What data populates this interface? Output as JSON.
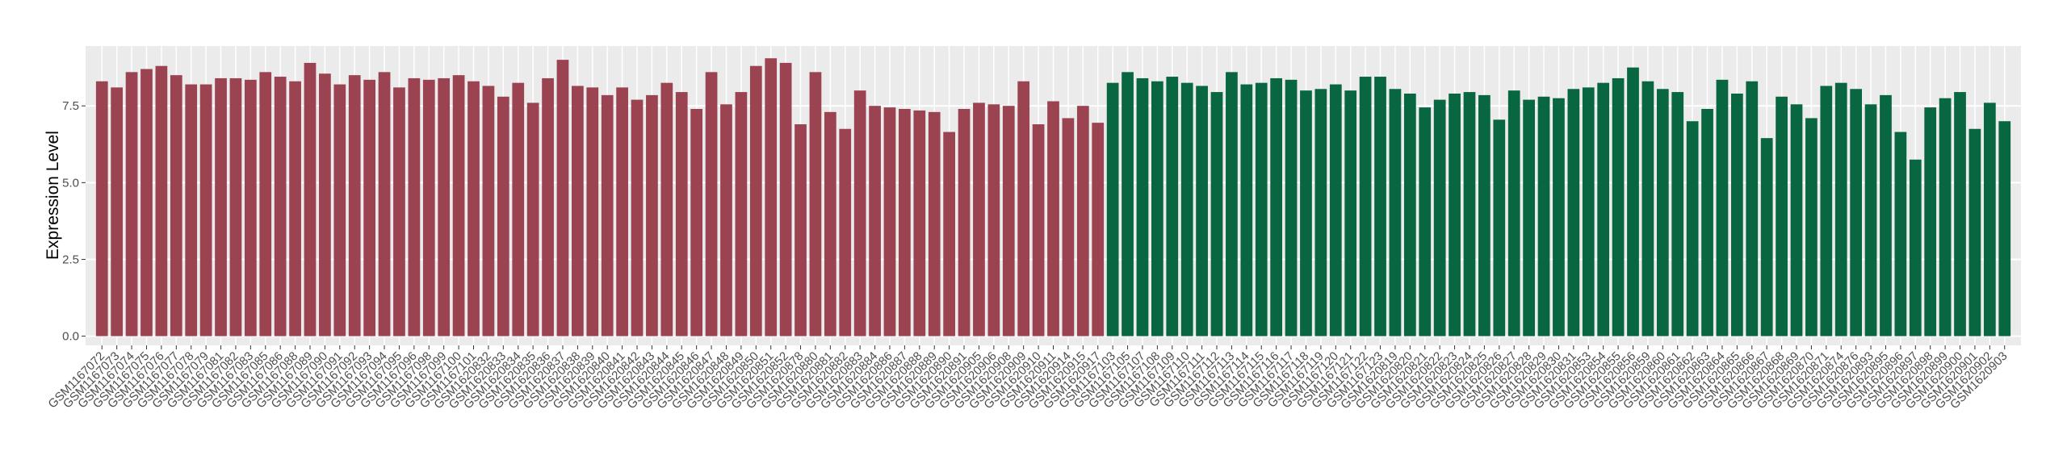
{
  "chart_data": {
    "type": "bar",
    "y_label": "Expression Level",
    "ylim": [
      -0.3,
      9.45
    ],
    "yticks": [
      {
        "value": 0,
        "label": "0.0"
      },
      {
        "value": 2.5,
        "label": "2.5"
      },
      {
        "value": 5,
        "label": "5.0"
      },
      {
        "value": 7.5,
        "label": "7.5"
      }
    ],
    "grid": true,
    "series": [
      {
        "color": "#9c4352",
        "categories": [
          "GSM1167072",
          "GSM1167073",
          "GSM1167074",
          "GSM1167075",
          "GSM1167076",
          "GSM1167077",
          "GSM1167078",
          "GSM1167079",
          "GSM1167081",
          "GSM1167082",
          "GSM1167083",
          "GSM1167085",
          "GSM1167086",
          "GSM1167088",
          "GSM1167089",
          "GSM1167090",
          "GSM1167091",
          "GSM1167092",
          "GSM1167093",
          "GSM1167094",
          "GSM1167095",
          "GSM1167096",
          "GSM1167098",
          "GSM1167099",
          "GSM1167100",
          "GSM1167101",
          "GSM1620832",
          "GSM1620833",
          "GSM1620834",
          "GSM1620835",
          "GSM1620836",
          "GSM1620837",
          "GSM1620838",
          "GSM1620839",
          "GSM1620840",
          "GSM1620841",
          "GSM1620842",
          "GSM1620843",
          "GSM1620844",
          "GSM1620845",
          "GSM1620846",
          "GSM1620847",
          "GSM1620848",
          "GSM1620849",
          "GSM1620850",
          "GSM1620851",
          "GSM1620852",
          "GSM1620878",
          "GSM1620880",
          "GSM1620881",
          "GSM1620882",
          "GSM1620883",
          "GSM1620884",
          "GSM1620886",
          "GSM1620887",
          "GSM1620888",
          "GSM1620889",
          "GSM1620890",
          "GSM1620891",
          "GSM1620905",
          "GSM1620906",
          "GSM1620908",
          "GSM1620909",
          "GSM1620910",
          "GSM1620911",
          "GSM1620914",
          "GSM1620915",
          "GSM1620917"
        ],
        "values": [
          8.3,
          8.1,
          8.6,
          8.7,
          8.8,
          8.5,
          8.2,
          8.2,
          8.4,
          8.4,
          8.35,
          8.6,
          8.45,
          8.3,
          8.9,
          8.55,
          8.2,
          8.5,
          8.35,
          8.6,
          8.1,
          8.4,
          8.35,
          8.4,
          8.5,
          8.3,
          8.15,
          7.8,
          8.25,
          7.6,
          8.4,
          9.0,
          8.15,
          8.1,
          7.85,
          8.1,
          7.7,
          7.85,
          8.25,
          7.95,
          7.4,
          8.6,
          7.55,
          7.95,
          8.8,
          9.05,
          8.9,
          6.9,
          8.6,
          7.3,
          6.75,
          8.0,
          7.5,
          7.45,
          7.4,
          7.35,
          7.3,
          6.65,
          7.4,
          7.6,
          7.55,
          7.5,
          8.3,
          6.9,
          7.65,
          7.1,
          7.5,
          6.95
        ]
      },
      {
        "color": "#086640",
        "categories": [
          "GSM1167103",
          "GSM1167105",
          "GSM1167107",
          "GSM1167108",
          "GSM1167109",
          "GSM1167110",
          "GSM1167111",
          "GSM1167112",
          "GSM1167113",
          "GSM1167114",
          "GSM1167115",
          "GSM1167116",
          "GSM1167117",
          "GSM1167118",
          "GSM1167119",
          "GSM1167120",
          "GSM1167121",
          "GSM1167122",
          "GSM1167123",
          "GSM1620819",
          "GSM1620820",
          "GSM1620821",
          "GSM1620822",
          "GSM1620823",
          "GSM1620824",
          "GSM1620825",
          "GSM1620826",
          "GSM1620827",
          "GSM1620828",
          "GSM1620829",
          "GSM1620830",
          "GSM1620831",
          "GSM1620853",
          "GSM1620854",
          "GSM1620855",
          "GSM1620856",
          "GSM1620859",
          "GSM1620860",
          "GSM1620861",
          "GSM1620862",
          "GSM1620863",
          "GSM1620864",
          "GSM1620865",
          "GSM1620866",
          "GSM1620867",
          "GSM1620868",
          "GSM1620869",
          "GSM1620870",
          "GSM1620871",
          "GSM1620874",
          "GSM1620876",
          "GSM1620893",
          "GSM1620895",
          "GSM1620896",
          "GSM1620897",
          "GSM1620898",
          "GSM1620899",
          "GSM1620900",
          "GSM1620901",
          "GSM1620902",
          "GSM1620903"
        ],
        "values": [
          8.25,
          8.6,
          8.4,
          8.3,
          8.45,
          8.25,
          8.15,
          7.95,
          8.6,
          8.2,
          8.25,
          8.4,
          8.35,
          8.0,
          8.05,
          8.2,
          8.0,
          8.45,
          8.45,
          8.05,
          7.9,
          7.45,
          7.7,
          7.9,
          7.95,
          7.85,
          7.05,
          8.0,
          7.7,
          7.8,
          7.75,
          8.05,
          8.1,
          8.25,
          8.4,
          8.75,
          8.3,
          8.05,
          7.95,
          7.0,
          7.4,
          8.35,
          7.9,
          8.3,
          6.45,
          7.8,
          7.55,
          7.1,
          8.15,
          8.25,
          8.05,
          7.55,
          7.85,
          6.65,
          5.75,
          7.45,
          7.75,
          7.95,
          6.75,
          7.6,
          7.0
        ]
      }
    ]
  }
}
